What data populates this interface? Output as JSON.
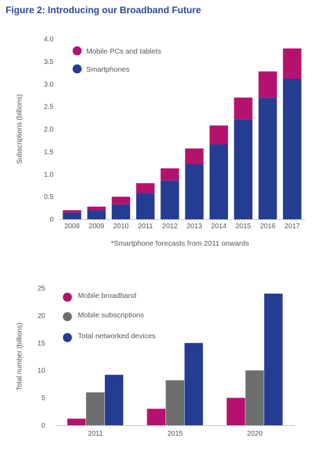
{
  "figure": {
    "title": "Figure 2: Introducing our Broadband Future"
  },
  "colors": {
    "magenta": "#b5126e",
    "blue": "#253c93",
    "gray": "#6d6e70"
  },
  "chart_data": [
    {
      "type": "bar",
      "stacked": true,
      "categories": [
        "2008",
        "2009",
        "2010",
        "2011",
        "2012",
        "2013",
        "2014",
        "2015",
        "2016",
        "2017"
      ],
      "series": [
        {
          "name": "Smartphones",
          "color": "#253c93",
          "values": [
            0.15,
            0.2,
            0.33,
            0.58,
            0.86,
            1.22,
            1.66,
            2.22,
            2.7,
            3.12
          ]
        },
        {
          "name": "Mobile PCs and tablets",
          "color": "#b5126e",
          "values": [
            0.05,
            0.08,
            0.17,
            0.22,
            0.27,
            0.35,
            0.42,
            0.48,
            0.58,
            0.67
          ]
        }
      ],
      "legend_order": [
        "Mobile PCs and tablets",
        "Smartphones"
      ],
      "ylabel": "Subscriptions (billions)",
      "ylim": [
        0,
        4.0
      ],
      "yticks": [
        "0",
        "0.5",
        "1.0",
        "1.5",
        "2.0",
        "2.5",
        "3.0",
        "3.5",
        "4.0"
      ],
      "legend_position": "top-left",
      "footnote": "*Smartphone forecasts from 2011 onwards"
    },
    {
      "type": "bar",
      "stacked": false,
      "categories": [
        "2011",
        "2015",
        "2020"
      ],
      "series": [
        {
          "name": "Mobile broadband",
          "color": "#b5126e",
          "values": [
            1.2,
            3,
            5
          ]
        },
        {
          "name": "Mobile subscriptions",
          "color": "#6d6e70",
          "values": [
            6,
            8.2,
            10
          ]
        },
        {
          "name": "Total networked devices",
          "color": "#253c93",
          "values": [
            9.2,
            15,
            24
          ]
        }
      ],
      "ylabel": "Total number (billions)",
      "ylim": [
        0,
        25
      ],
      "yticks": [
        "0",
        "5",
        "10",
        "15",
        "20",
        "25"
      ],
      "legend_position": "top-left"
    }
  ]
}
